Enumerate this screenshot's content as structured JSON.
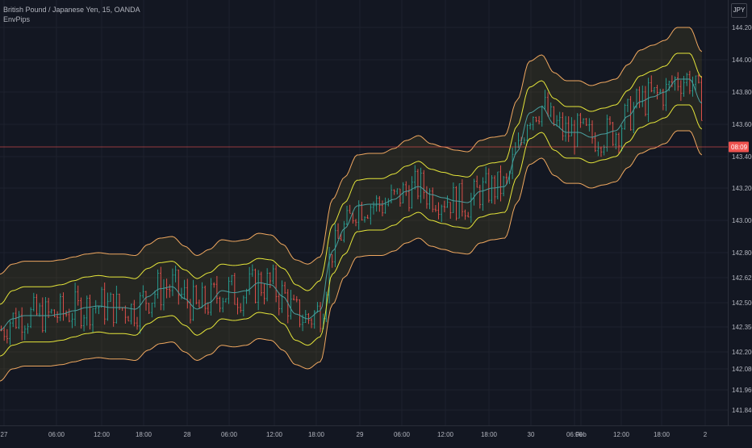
{
  "header": {
    "symbol": "British Pound / Japanese Yen, 15, OANDA",
    "indicator": "EnvPips",
    "currency_button": "JPY"
  },
  "colors": {
    "background": "#131722",
    "grid": "#1e222d",
    "up_bar": "#26a69a",
    "down_bar": "#ef5350",
    "basis": "#4a9e9e",
    "inner_band": "#e5e53a",
    "outer_band": "#f0a860",
    "fill": "rgba(120,110,40,0.18)",
    "price_line": "#ef5350"
  },
  "chart_data": {
    "type": "line",
    "title": "British Pound / Japanese Yen, 15, OANDA",
    "xlabel": "",
    "ylabel": "",
    "x_ticks": [
      "27",
      "06:00",
      "12:00",
      "18:00",
      "28",
      "06:00",
      "12:00",
      "18:00",
      "29",
      "06:00",
      "12:00",
      "18:00",
      "30",
      "06:00",
      "Feb",
      "12:00",
      "18:00",
      "2"
    ],
    "y_ticks": [
      "144.200",
      "144.000",
      "143.800",
      "143.600",
      "143.400",
      "143.200",
      "143.000",
      "142.800",
      "142.625",
      "142.500",
      "142.350",
      "142.200",
      "142.080",
      "141.960",
      "141.840"
    ],
    "y_tick_values": [
      144.2,
      144.0,
      143.8,
      143.6,
      143.4,
      143.2,
      143.0,
      142.8,
      142.625,
      142.5,
      142.35,
      142.2,
      142.08,
      141.96,
      141.84
    ],
    "last_price_label": "08:09",
    "last_price": 143.46,
    "basis_x": [
      0,
      3,
      6,
      9,
      12,
      15,
      18,
      21,
      24,
      27,
      30,
      33,
      36,
      39,
      42,
      45,
      48,
      51,
      54,
      57,
      60,
      63,
      66,
      69,
      72,
      75,
      78,
      81,
      84,
      87,
      90,
      93,
      96,
      99,
      102,
      105,
      108,
      111,
      114,
      117,
      120,
      123,
      126,
      129,
      132,
      135,
      138,
      141,
      144,
      147,
      150,
      153,
      156,
      159,
      162,
      165,
      168,
      171
    ],
    "basis_y": [
      142.33,
      142.4,
      142.42,
      142.42,
      142.42,
      142.43,
      142.45,
      142.47,
      142.48,
      142.47,
      142.47,
      142.46,
      142.53,
      142.57,
      142.58,
      142.52,
      142.46,
      142.5,
      142.56,
      142.55,
      142.56,
      142.6,
      142.59,
      142.53,
      142.43,
      142.4,
      142.45,
      142.81,
      142.95,
      143.09,
      143.1,
      143.1,
      143.13,
      143.18,
      143.21,
      143.16,
      143.14,
      143.12,
      143.11,
      143.18,
      143.2,
      143.21,
      143.43,
      143.67,
      143.71,
      143.6,
      143.55,
      143.55,
      143.52,
      143.54,
      143.56,
      143.65,
      143.74,
      143.77,
      143.8,
      143.88,
      143.88,
      143.73
    ],
    "series": [
      {
        "name": "Upper outer band",
        "offset": 0.32
      },
      {
        "name": "Upper inner band",
        "offset": 0.16
      },
      {
        "name": "Basis",
        "offset": 0.0
      },
      {
        "name": "Lower inner band",
        "offset": -0.16
      },
      {
        "name": "Lower outer band",
        "offset": -0.32
      }
    ],
    "ylim": [
      141.8,
      144.27
    ],
    "grid": true,
    "legend": "none"
  }
}
